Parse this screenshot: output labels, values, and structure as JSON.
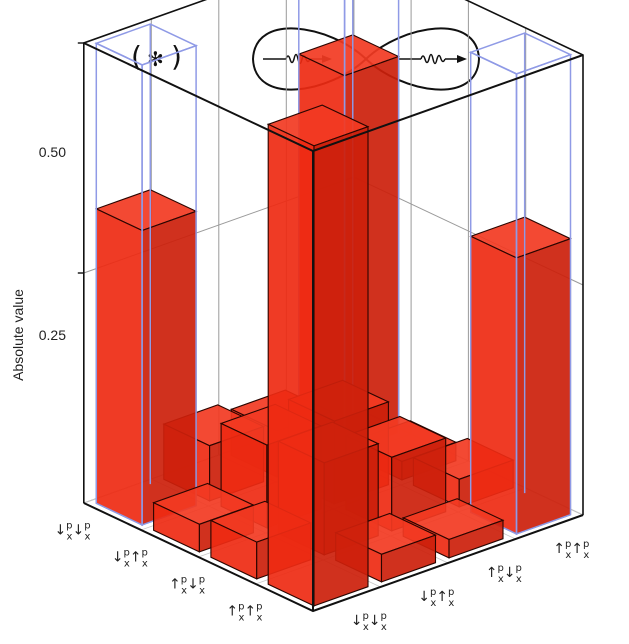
{
  "header": {
    "symbol_left": "(",
    "symbol_right": ")",
    "symbol_center": "✻"
  },
  "chart_data": {
    "type": "bar3d",
    "ylabel": "Absolute value",
    "zlim": [
      0,
      0.5
    ],
    "z_ticks": [
      "0.50",
      "0.25"
    ],
    "left_axis_labels": [
      {
        "a1": "↓",
        "s1": "x",
        "a2": "↓",
        "s2": "x"
      },
      {
        "a1": "↓",
        "s1": "x",
        "a2": "↑",
        "s2": "x"
      },
      {
        "a1": "↑",
        "s1": "x",
        "a2": "↓",
        "s2": "x"
      },
      {
        "a1": "↑",
        "s1": "x",
        "a2": "↑",
        "s2": "x"
      }
    ],
    "right_axis_labels": [
      {
        "a1": "↓",
        "s1": "x",
        "a2": "↓",
        "s2": "x"
      },
      {
        "a1": "↓",
        "s1": "x",
        "a2": "↑",
        "s2": "x"
      },
      {
        "a1": "↑",
        "s1": "x",
        "a2": "↓",
        "s2": "x"
      },
      {
        "a1": "↑",
        "s1": "x",
        "a2": "↑",
        "s2": "x"
      }
    ],
    "label_sup": "p",
    "measured": [
      [
        0.5,
        0.03,
        0.02,
        0.3
      ],
      [
        0.04,
        0.1,
        0.08,
        0.03
      ],
      [
        0.03,
        0.09,
        0.09,
        0.02
      ],
      [
        0.32,
        0.06,
        0.05,
        0.41
      ]
    ],
    "ideal": [
      [
        0.5,
        0,
        0,
        0.5
      ],
      [
        0,
        0,
        0,
        0
      ],
      [
        0,
        0,
        0,
        0
      ],
      [
        0.5,
        0,
        0,
        0.5
      ]
    ],
    "colors": {
      "bar_front": "#ee2a12",
      "bar_side": "#cc1f0b",
      "bar_top": "#f23a22",
      "bar_edge": "#2a0500",
      "ideal_edge": "#8f9ae6",
      "frame": "#111111",
      "grid": "#9a9a9a"
    }
  }
}
